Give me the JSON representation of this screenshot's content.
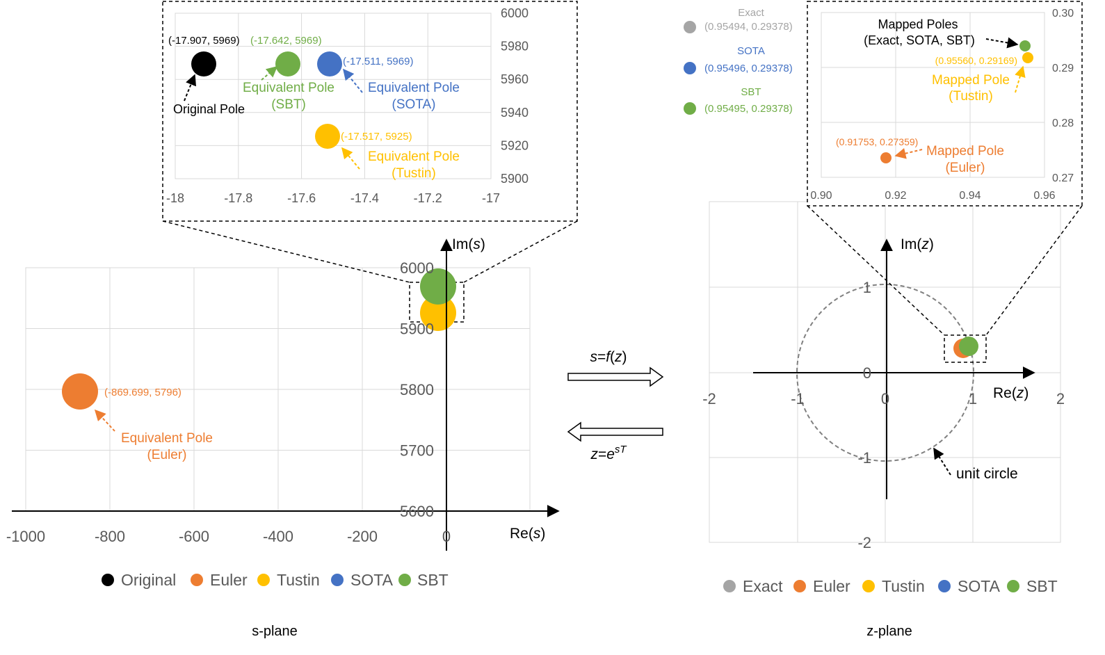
{
  "colors": {
    "original": "#000000",
    "euler": "#ED7D31",
    "tustin": "#FFC000",
    "sota": "#4472C4",
    "sbt": "#70AD47",
    "exact": "#A5A5A5",
    "grid": "#d9d9d9",
    "unit_circle": "#808080"
  },
  "conversion": {
    "forward": "s=f(z)",
    "backward": "z=e^{sT}"
  },
  "s_plane": {
    "caption": "s-plane",
    "axis_x_label": "Re(s)",
    "axis_y_label": "Im(s)",
    "main": {
      "x_ticks": [
        "-1000",
        "-800",
        "-600",
        "-400",
        "-200",
        "0"
      ],
      "y_ticks": [
        "5600",
        "5700",
        "5800",
        "5900",
        "6000"
      ],
      "euler_label": "(-869.699, 5796)",
      "euler_annotation": [
        "Equivalent Pole",
        "(Euler)"
      ]
    },
    "inset": {
      "x_ticks": [
        "-18",
        "-17.8",
        "-17.6",
        "-17.4",
        "-17.2",
        "-17"
      ],
      "y_ticks": [
        "5900",
        "5920",
        "5940",
        "5960",
        "5980",
        "6000"
      ],
      "original_label": "(-17.907, 5969)",
      "sbt_label": "(-17.642, 5969)",
      "sota_label": "(-17.511, 5969)",
      "tustin_label": "(-17.517, 5925)",
      "original_annotation": "Original Pole",
      "sbt_annotation": [
        "Equivalent Pole",
        "(SBT)"
      ],
      "sota_annotation": [
        "Equivalent Pole",
        "(SOTA)"
      ],
      "tustin_annotation": [
        "Equivalent Pole",
        "(Tustin)"
      ]
    },
    "legend": [
      "Original",
      "Euler",
      "Tustin",
      "SOTA",
      "SBT"
    ]
  },
  "z_plane": {
    "caption": "z-plane",
    "axis_x_label": "Re(z)",
    "axis_y_label": "Im(z)",
    "main": {
      "x_ticks": [
        "-2",
        "-1",
        "0",
        "1",
        "2"
      ],
      "y_ticks": [
        "-2",
        "-1",
        "0",
        "1"
      ],
      "unit_circle_label": "unit circle"
    },
    "inset": {
      "x_ticks": [
        "0.90",
        "0.92",
        "0.94",
        "0.96"
      ],
      "y_ticks": [
        "0.27",
        "0.28",
        "0.29",
        "0.30"
      ],
      "mapped_poles_annotation": [
        "Mapped Poles",
        "(Exact, SOTA, SBT)"
      ],
      "tustin_label": "(0.95560, 0.29169)",
      "tustin_annotation": [
        "Mapped Pole",
        "(Tustin)"
      ],
      "euler_label": "(0.91753, 0.27359)",
      "euler_annotation": [
        "Mapped Pole",
        "(Euler)"
      ]
    },
    "side_legend": [
      {
        "name": "Exact",
        "value": "(0.95494, 0.29378)"
      },
      {
        "name": "SOTA",
        "value": "(0.95496, 0.29378)"
      },
      {
        "name": "SBT",
        "value": "(0.95495, 0.29378)"
      }
    ],
    "legend": [
      "Exact",
      "Euler",
      "Tustin",
      "SOTA",
      "SBT"
    ]
  },
  "chart_data": [
    {
      "type": "scatter",
      "xlabel": "Re(s)",
      "ylabel": "Im(s)",
      "xlim": [
        -1000,
        0
      ],
      "ylim": [
        5600,
        6000
      ],
      "series": [
        {
          "name": "Original",
          "x": [
            -17.907
          ],
          "y": [
            5969
          ]
        },
        {
          "name": "Euler",
          "x": [
            -869.699
          ],
          "y": [
            5796
          ]
        },
        {
          "name": "Tustin",
          "x": [
            -17.517
          ],
          "y": [
            5925
          ]
        },
        {
          "name": "SOTA",
          "x": [
            -17.511
          ],
          "y": [
            5969
          ]
        },
        {
          "name": "SBT",
          "x": [
            -17.642
          ],
          "y": [
            5969
          ]
        }
      ]
    },
    {
      "type": "scatter",
      "xlabel": "Re(z)",
      "ylabel": "Im(z)",
      "xlim": [
        -2,
        2
      ],
      "ylim": [
        -2,
        1
      ],
      "series": [
        {
          "name": "Exact",
          "x": [
            0.95494
          ],
          "y": [
            0.29378
          ]
        },
        {
          "name": "Euler",
          "x": [
            0.91753
          ],
          "y": [
            0.27359
          ]
        },
        {
          "name": "Tustin",
          "x": [
            0.9556
          ],
          "y": [
            0.29169
          ]
        },
        {
          "name": "SOTA",
          "x": [
            0.95496
          ],
          "y": [
            0.29378
          ]
        },
        {
          "name": "SBT",
          "x": [
            0.95495
          ],
          "y": [
            0.29378
          ]
        }
      ]
    }
  ]
}
